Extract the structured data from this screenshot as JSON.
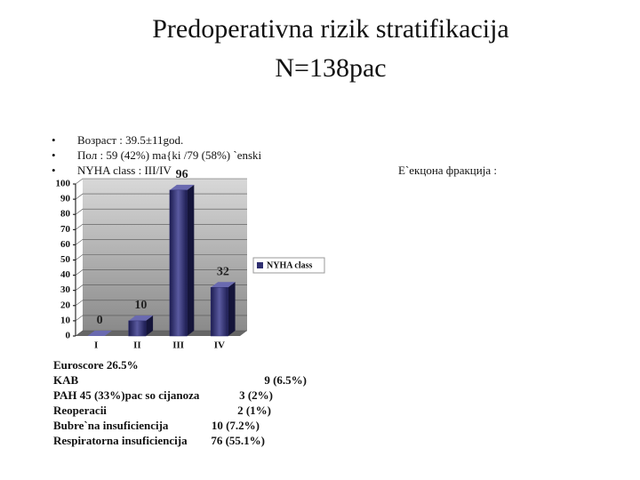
{
  "title": "Predoperativna rizik stratifikacija",
  "subtitle": "N=138pac",
  "bullets": [
    "Возраст : 39.5±11god.",
    "Пол : 59 (42%) ma{ki /79 (58%) `enski",
    "NYHA class : III/IV"
  ],
  "right_text": "E`екцона фракција :",
  "details": [
    [
      "Euroscore 26.5%",
      ""
    ],
    [
      "KAB",
      "9 (6.5%)"
    ],
    [
      "PAH 45 (33%)pac so cijanoza",
      "3 (2%)"
    ],
    [
      "Reoperacii",
      "2 (1%)"
    ],
    [
      "Bubre`na insuficiencija",
      "10 (7.2%)"
    ],
    [
      "Respiratorna insuficiencija",
      "76 (55.1%)"
    ]
  ],
  "chart_data": {
    "type": "bar",
    "categories": [
      "I",
      "II",
      "III",
      "IV"
    ],
    "series": [
      {
        "name": "NYHA class",
        "color": "#2e2e70",
        "values": [
          0,
          10,
          96,
          32
        ]
      }
    ],
    "ylim": [
      0,
      100
    ],
    "yticks": [
      0,
      10,
      20,
      30,
      40,
      50,
      60,
      70,
      80,
      90,
      100
    ],
    "grid": true,
    "legend": "right"
  }
}
